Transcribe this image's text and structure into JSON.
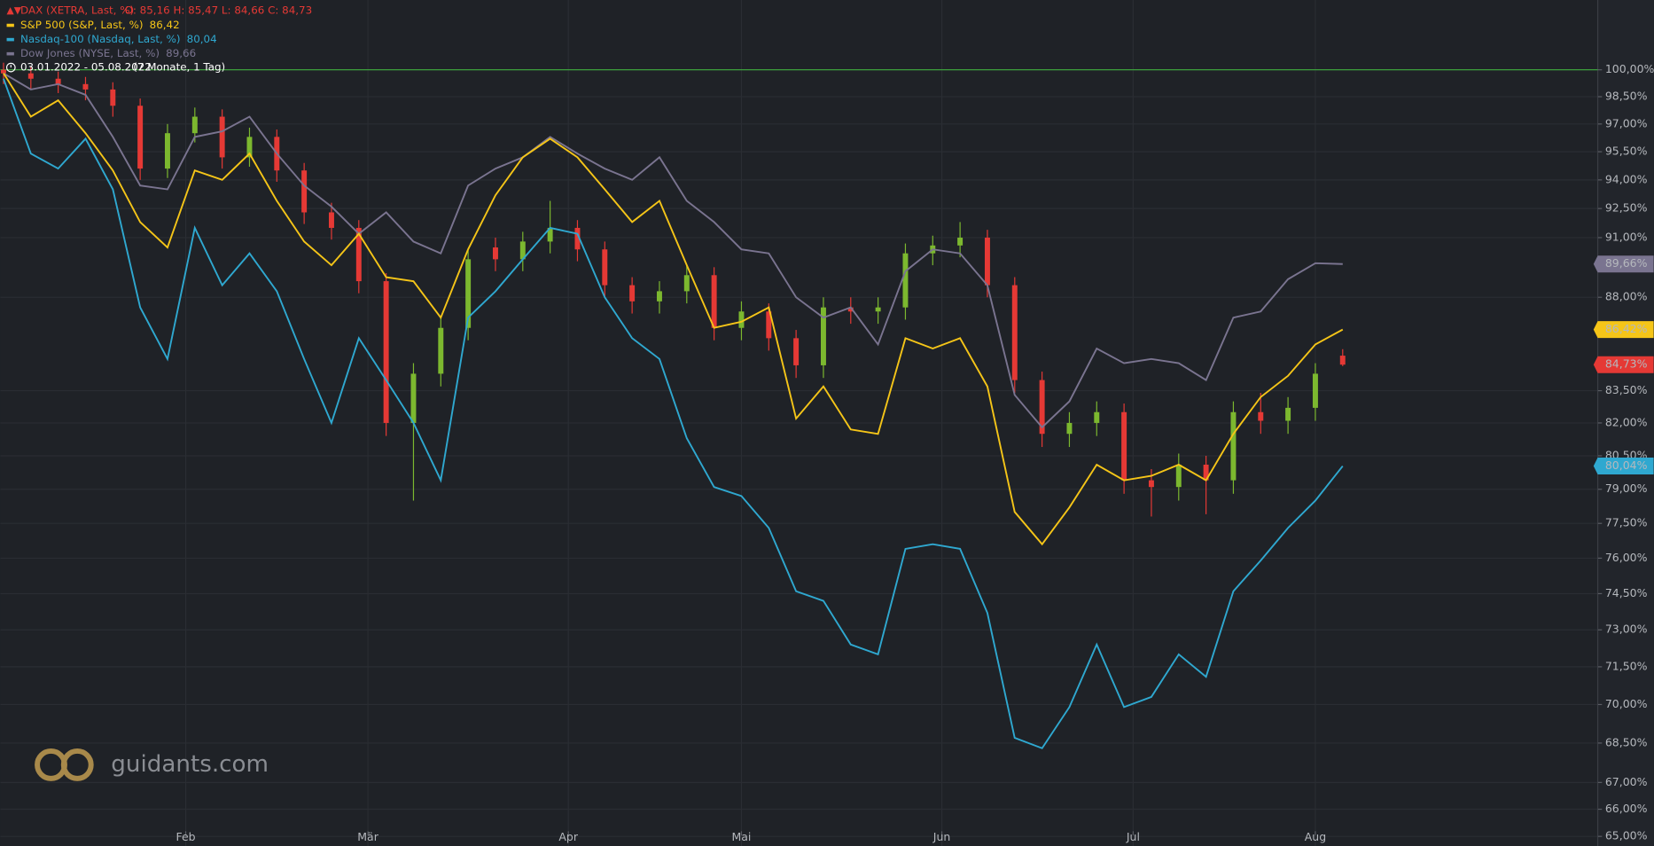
{
  "chart_data": {
    "type": "candlestick",
    "log_scale": true,
    "grid": true,
    "baseline": 100,
    "date_range": "03.01.2022 - 05.08.2022",
    "period": "(7 Monate, 1 Tag)",
    "watermark": "guidants.com",
    "xlim": [
      0,
      175
    ],
    "xticks": [
      {
        "value": 20,
        "label": "Feb"
      },
      {
        "value": 40,
        "label": "Mär"
      },
      {
        "value": 62,
        "label": "Apr"
      },
      {
        "value": 81,
        "label": "Mai"
      },
      {
        "value": 103,
        "label": "Jun"
      },
      {
        "value": 124,
        "label": "Jul"
      },
      {
        "value": 144,
        "label": "Aug"
      }
    ],
    "ylim": [
      64.65,
      104.0
    ],
    "yticks": [
      {
        "value": 100,
        "label": "100,00%"
      },
      {
        "value": 98.5,
        "label": "98,50%"
      },
      {
        "value": 97,
        "label": "97,00%"
      },
      {
        "value": 95.5,
        "label": "95,50%"
      },
      {
        "value": 94,
        "label": "94,00%"
      },
      {
        "value": 92.5,
        "label": "92,50%"
      },
      {
        "value": 91,
        "label": "91,00%"
      },
      {
        "value": 88,
        "label": "88,00%"
      },
      {
        "value": 83.5,
        "label": "83,50%"
      },
      {
        "value": 82,
        "label": "82,00%"
      },
      {
        "value": 80.5,
        "label": "80,50%"
      },
      {
        "value": 79,
        "label": "79,00%"
      },
      {
        "value": 77.5,
        "label": "77,50%"
      },
      {
        "value": 76,
        "label": "76,00%"
      },
      {
        "value": 74.5,
        "label": "74,50%"
      },
      {
        "value": 73,
        "label": "73,00%"
      },
      {
        "value": 71.5,
        "label": "71,50%"
      },
      {
        "value": 70,
        "label": "70,00%"
      },
      {
        "value": 68.5,
        "label": "68,50%"
      },
      {
        "value": 67,
        "label": "67,00%"
      },
      {
        "value": 66,
        "label": "66,00%"
      },
      {
        "value": 65,
        "label": "65,00%"
      }
    ],
    "x": [
      0,
      3,
      6,
      9,
      12,
      15,
      18,
      21,
      24,
      27,
      30,
      33,
      36,
      39,
      42,
      45,
      48,
      51,
      54,
      57,
      60,
      63,
      66,
      69,
      72,
      75,
      78,
      81,
      84,
      87,
      90,
      93,
      96,
      99,
      102,
      105,
      108,
      111,
      114,
      117,
      120,
      123,
      126,
      129,
      132,
      135,
      138,
      141,
      144,
      147
    ],
    "candles": {
      "name": "DAX (XETRA, Last, %)",
      "legend_values": "O: 85,16  H: 85,47  L: 84,66  C: 84,73",
      "last_label": "84,73%",
      "up_color": "#7cb82f",
      "down_color": "#e53935",
      "open": [
        100.0,
        99.8,
        99.5,
        99.2,
        98.9,
        98.0,
        94.6,
        96.5,
        97.4,
        95.2,
        96.3,
        94.5,
        92.3,
        91.5,
        88.8,
        82.0,
        84.3,
        86.5,
        90.5,
        89.9,
        90.8,
        91.5,
        90.4,
        88.6,
        87.8,
        88.3,
        89.1,
        86.5,
        87.3,
        86.0,
        84.7,
        87.5,
        87.3,
        87.5,
        90.2,
        90.6,
        91.0,
        88.6,
        84.0,
        81.5,
        82.0,
        82.5,
        79.4,
        79.1,
        80.1,
        79.4,
        82.5,
        82.1,
        82.7,
        85.16
      ],
      "high": [
        100.4,
        100.2,
        99.9,
        99.6,
        99.3,
        98.4,
        97.0,
        97.9,
        97.8,
        96.8,
        96.7,
        94.9,
        92.8,
        91.9,
        89.2,
        84.8,
        87.0,
        90.4,
        91.0,
        91.3,
        92.9,
        91.9,
        90.8,
        89.0,
        88.8,
        89.6,
        89.5,
        87.8,
        87.7,
        86.4,
        88.0,
        88.0,
        88.0,
        90.7,
        91.1,
        91.8,
        91.4,
        89.0,
        84.4,
        82.5,
        83.0,
        82.9,
        79.9,
        80.6,
        80.5,
        83.0,
        83.4,
        83.2,
        84.8,
        85.47
      ],
      "low": [
        99.2,
        98.9,
        98.7,
        98.3,
        97.4,
        94.0,
        94.1,
        96.0,
        94.6,
        94.7,
        93.9,
        91.7,
        90.9,
        88.2,
        81.4,
        78.5,
        83.7,
        85.9,
        89.3,
        89.3,
        90.2,
        89.8,
        88.0,
        87.2,
        87.2,
        87.7,
        85.9,
        85.9,
        85.4,
        84.1,
        84.1,
        86.7,
        86.7,
        86.9,
        89.6,
        90.0,
        88.0,
        83.4,
        80.9,
        80.9,
        81.4,
        78.8,
        77.8,
        78.5,
        77.9,
        78.8,
        81.5,
        81.5,
        82.1,
        84.66
      ],
      "close": [
        99.8,
        99.5,
        99.2,
        98.9,
        98.0,
        94.6,
        96.5,
        97.4,
        95.2,
        96.3,
        94.5,
        92.3,
        91.5,
        88.8,
        82.0,
        84.3,
        86.5,
        89.9,
        89.9,
        90.8,
        91.5,
        90.4,
        88.6,
        87.8,
        88.3,
        89.1,
        86.5,
        87.3,
        86.0,
        84.7,
        87.5,
        87.3,
        87.5,
        90.2,
        90.6,
        91.0,
        88.6,
        84.0,
        81.5,
        82.0,
        82.5,
        79.4,
        79.1,
        80.1,
        79.4,
        82.5,
        82.1,
        82.7,
        84.3,
        84.73
      ]
    },
    "series": [
      {
        "name": "S&P 500 (S&P, Last, %)",
        "legend_value": "86,42",
        "last_label": "86,42%",
        "color": "#f5c518",
        "badge_text": "#1f2227",
        "values": [
          99.8,
          97.4,
          98.3,
          96.5,
          94.5,
          91.8,
          90.5,
          94.5,
          94.0,
          95.4,
          92.9,
          90.8,
          89.6,
          91.2,
          89.0,
          88.8,
          87.0,
          90.4,
          93.2,
          95.2,
          96.2,
          95.2,
          93.5,
          91.8,
          92.9,
          89.6,
          86.5,
          86.8,
          87.5,
          82.2,
          83.7,
          81.7,
          81.5,
          86.0,
          85.5,
          86.0,
          83.7,
          78.0,
          76.6,
          78.2,
          80.1,
          79.4,
          79.6,
          80.1,
          79.4,
          81.5,
          83.2,
          84.2,
          85.7,
          86.42
        ]
      },
      {
        "name": "Nasdaq-100 (Nasdaq, Last, %)",
        "legend_value": "80,04",
        "last_label": "80,04%",
        "color": "#2fa8d0",
        "badge_text": "#1f2227",
        "values": [
          99.5,
          95.4,
          94.6,
          96.2,
          93.5,
          87.5,
          85.0,
          91.5,
          88.6,
          90.2,
          88.3,
          85.0,
          82.0,
          86.0,
          84.0,
          82.0,
          79.4,
          87.0,
          88.3,
          89.9,
          91.5,
          91.2,
          88.0,
          86.0,
          85.0,
          81.3,
          79.1,
          78.7,
          77.3,
          74.6,
          74.2,
          72.4,
          72.0,
          76.4,
          76.6,
          76.4,
          73.7,
          68.7,
          68.3,
          69.9,
          72.4,
          69.9,
          70.3,
          72.0,
          71.1,
          74.6,
          75.9,
          77.3,
          78.5,
          80.04
        ]
      },
      {
        "name": "Dow Jones (NYSE, Last, %)",
        "legend_value": "89,66",
        "last_label": "89,66%",
        "color": "#7a7490",
        "badge_text": "#ffffff",
        "values": [
          99.8,
          98.9,
          99.2,
          98.6,
          96.3,
          93.7,
          93.5,
          96.3,
          96.6,
          97.4,
          95.4,
          93.7,
          92.6,
          91.2,
          92.3,
          90.8,
          90.2,
          93.7,
          94.6,
          95.2,
          96.3,
          95.4,
          94.6,
          94.0,
          95.2,
          92.9,
          91.8,
          90.4,
          90.2,
          88.0,
          87.0,
          87.5,
          85.7,
          89.3,
          90.4,
          90.2,
          88.6,
          83.3,
          81.8,
          83.0,
          85.5,
          84.8,
          85.0,
          84.8,
          84.0,
          87.0,
          87.3,
          88.9,
          89.7,
          89.66
        ]
      }
    ]
  }
}
